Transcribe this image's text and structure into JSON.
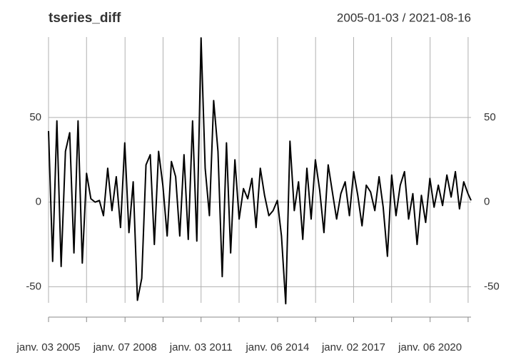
{
  "chart_data": {
    "type": "line",
    "title": "tseries_diff",
    "subtitle": "2005-01-03 / 2021-08-16",
    "x": [
      "2005-01-03",
      "2005-03-03",
      "2005-05-03",
      "2005-07-03",
      "2005-09-03",
      "2005-11-03",
      "2006-01-03",
      "2006-03-03",
      "2006-05-03",
      "2006-07-03",
      "2006-09-03",
      "2006-11-03",
      "2007-01-03",
      "2007-03-03",
      "2007-05-03",
      "2007-07-03",
      "2007-09-03",
      "2007-11-03",
      "2008-01-03",
      "2008-03-03",
      "2008-05-03",
      "2008-07-03",
      "2008-09-03",
      "2008-11-03",
      "2009-01-03",
      "2009-03-03",
      "2009-05-03",
      "2009-07-03",
      "2009-09-03",
      "2009-11-03",
      "2010-01-03",
      "2010-03-03",
      "2010-05-03",
      "2010-07-03",
      "2010-09-03",
      "2010-11-03",
      "2011-01-03",
      "2011-03-03",
      "2011-05-03",
      "2011-07-03",
      "2011-09-03",
      "2011-11-03",
      "2012-01-03",
      "2012-03-03",
      "2012-05-03",
      "2012-07-03",
      "2012-09-03",
      "2012-11-03",
      "2013-01-03",
      "2013-03-03",
      "2013-05-03",
      "2013-07-03",
      "2013-09-03",
      "2013-11-03",
      "2014-01-03",
      "2014-03-03",
      "2014-05-03",
      "2014-07-03",
      "2014-09-03",
      "2014-11-03",
      "2015-01-03",
      "2015-03-03",
      "2015-05-03",
      "2015-07-03",
      "2015-09-03",
      "2015-11-03",
      "2016-01-03",
      "2016-03-03",
      "2016-05-03",
      "2016-07-03",
      "2016-09-03",
      "2016-11-03",
      "2017-01-03",
      "2017-03-03",
      "2017-05-03",
      "2017-07-03",
      "2017-09-03",
      "2017-11-03",
      "2018-01-03",
      "2018-03-03",
      "2018-05-03",
      "2018-07-03",
      "2018-09-03",
      "2018-11-03",
      "2019-01-03",
      "2019-03-03",
      "2019-05-03",
      "2019-07-03",
      "2019-09-03",
      "2019-11-03",
      "2020-01-03",
      "2020-03-03",
      "2020-05-03",
      "2020-07-03",
      "2020-09-03",
      "2020-11-03",
      "2021-01-03",
      "2021-03-03",
      "2021-05-03",
      "2021-07-03",
      "2021-08-16"
    ],
    "series": [
      {
        "name": "tseries_diff",
        "color": "#000000",
        "values": [
          42,
          -35,
          48,
          -38,
          30,
          41,
          -30,
          48,
          -36,
          17,
          2,
          0,
          1,
          -8,
          20,
          -5,
          15,
          -15,
          35,
          -18,
          12,
          -58,
          -45,
          22,
          28,
          -25,
          30,
          10,
          -20,
          24,
          15,
          -20,
          28,
          -22,
          48,
          -23,
          97,
          20,
          -8,
          60,
          30,
          -44,
          35,
          -30,
          25,
          -10,
          8,
          2,
          14,
          -15,
          20,
          4,
          -8,
          -5,
          1,
          -20,
          -60,
          36,
          -5,
          12,
          -22,
          20,
          -10,
          25,
          7,
          -18,
          22,
          6,
          -10,
          5,
          12,
          -8,
          18,
          4,
          -14,
          10,
          6,
          -5,
          15,
          -3,
          -32,
          16,
          -8,
          10,
          18,
          -10,
          5,
          -25,
          4,
          -12,
          14,
          -3,
          10,
          -2,
          16,
          3,
          18,
          -4,
          12,
          5,
          1
        ]
      }
    ],
    "xlim": [
      "2005-01-03",
      "2021-08-16"
    ],
    "xticks": [
      {
        "value": "2005-01-03",
        "label": "janv. 03 2005"
      },
      {
        "value": "2006-07-03",
        "label": null
      },
      {
        "value": "2008-01-07",
        "label": "janv. 07 2008"
      },
      {
        "value": "2009-07-06",
        "label": null
      },
      {
        "value": "2011-01-03",
        "label": "janv. 03 2011"
      },
      {
        "value": "2012-07-02",
        "label": null
      },
      {
        "value": "2014-01-06",
        "label": "janv. 06 2014"
      },
      {
        "value": "2015-07-06",
        "label": null
      },
      {
        "value": "2017-01-02",
        "label": "janv. 02 2017"
      },
      {
        "value": "2018-07-02",
        "label": null
      },
      {
        "value": "2020-01-06",
        "label": "janv. 06 2020"
      },
      {
        "value": "2021-07-05",
        "label": null
      }
    ],
    "ylim": [
      -59.5,
      97.5
    ],
    "yticks": [
      -50,
      0,
      50
    ],
    "grid": true
  }
}
